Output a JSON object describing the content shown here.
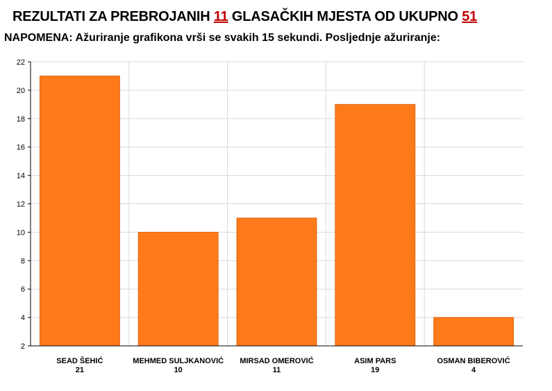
{
  "header": {
    "title_prefix": "REZULTATI ZA PREBROJANIH",
    "counted": "11",
    "title_middle": "GLASAČKIH MJESTA OD UKUPNO",
    "total": "51",
    "note": "NAPOMENA: Ažuriranje grafikona vrši se svakih 15 sekundi. Posljednje ažuriranje:"
  },
  "colors": {
    "bar": "#ff7a1a",
    "bar_edge": "#e06410",
    "grid": "#d9d9d9",
    "accent": "#c00000"
  },
  "chart_data": {
    "type": "bar",
    "categories": [
      "SEAD ŠEHIĆ",
      "MEHMED SULJKANOVIĆ",
      "MIRSAD OMEROVIĆ",
      "ASIM PARS",
      "OSMAN BIBEROVIĆ"
    ],
    "values": [
      21,
      10,
      11,
      19,
      4
    ],
    "value_labels": [
      "21",
      "10",
      "11",
      "19",
      "4"
    ],
    "ylim": [
      2,
      22
    ],
    "yticks": [
      2,
      4,
      6,
      8,
      10,
      12,
      14,
      16,
      18,
      20,
      22
    ],
    "grid": true
  }
}
